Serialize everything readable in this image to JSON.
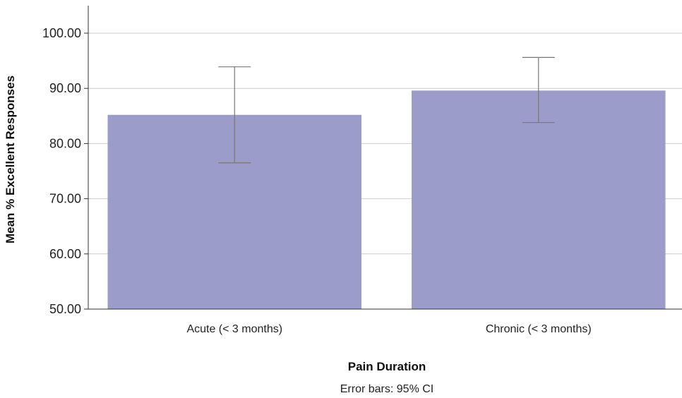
{
  "chart_data": {
    "type": "bar",
    "categories": [
      "Acute (< 3 months)",
      "Chronic (< 3 months)"
    ],
    "values": [
      85.2,
      89.6
    ],
    "error_bars": {
      "lower": [
        76.5,
        83.8
      ],
      "upper": [
        93.9,
        95.6
      ]
    },
    "ylabel": "Mean % Excellent Responses",
    "xlabel": "Pain Duration",
    "note": "Error bars: 95% CI",
    "ylim": [
      50,
      100
    ],
    "yticks": [
      "50.00",
      "60.00",
      "70.00",
      "80.00",
      "90.00",
      "100.00"
    ],
    "grid": true,
    "bar_color": "#9b9cc9",
    "errorbar_color": "#777777",
    "gridline_color": "#cccccc",
    "axis_color": "#333333"
  }
}
